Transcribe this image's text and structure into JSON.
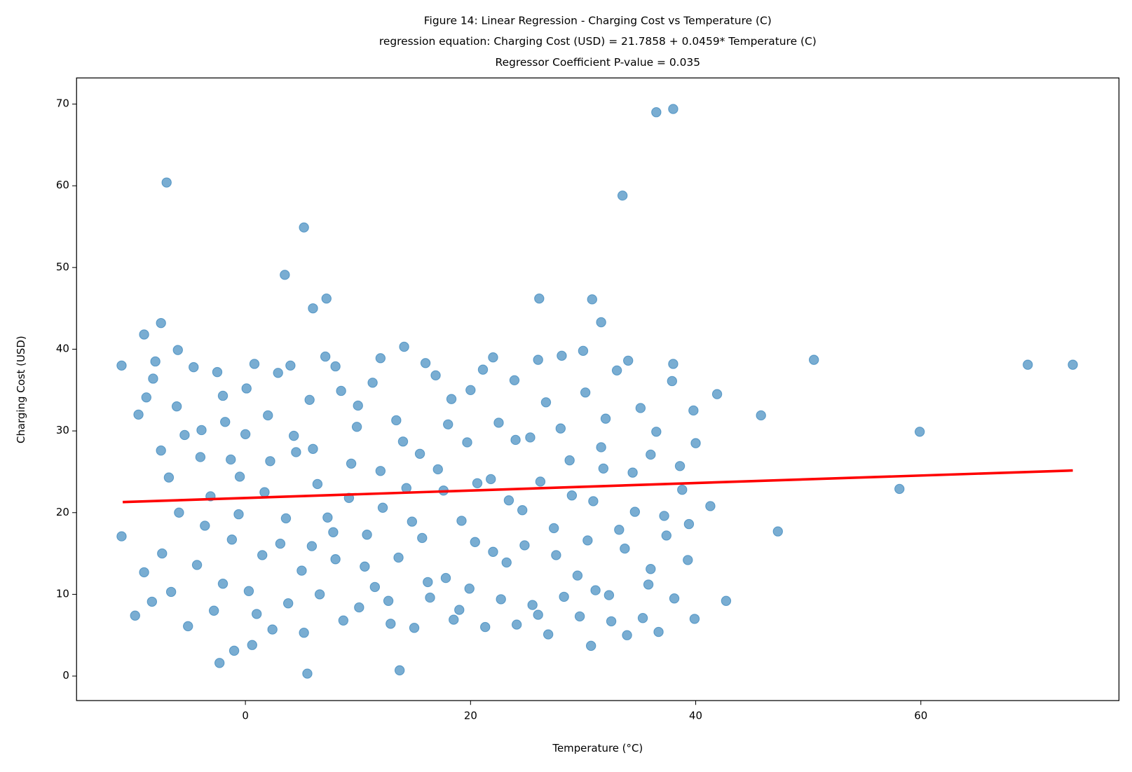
{
  "chart_data": {
    "type": "scatter",
    "title": [
      "Figure 14: Linear Regression - Charging Cost vs Temperature (C)",
      "regression equation: Charging Cost (USD) = 21.7858 + 0.0459* Temperature (C)",
      "Regressor Coefficient P-value = 0.035"
    ],
    "x_label": "Temperature (°C)",
    "y_label": "Charging Cost (USD)",
    "xlim": [
      -15.0,
      77.6
    ],
    "ylim": [
      -3.0,
      73.2
    ],
    "xticks": [
      0,
      20,
      40,
      60
    ],
    "yticks": [
      0,
      10,
      20,
      30,
      40,
      50,
      60,
      70
    ],
    "grid": false,
    "series": [
      {
        "kind": "points",
        "color": "#1f77b4",
        "opacity": 0.6,
        "x": [
          -7,
          5.2,
          3.5,
          7.2,
          6.0,
          -7.5,
          -9,
          26.1,
          30.8,
          31.6,
          33.5,
          36.5,
          38.0,
          50.5,
          45.8,
          47.3,
          58.1,
          59.9,
          69.5,
          73.5,
          42.7,
          41.9,
          41.3,
          5.5,
          13.7,
          -2.3,
          -1,
          0.6,
          30.7,
          -11,
          -11,
          -9.5,
          -8.8,
          -8.2,
          -7.5,
          -6.8,
          -6.1,
          -5.4,
          -4.6,
          -3.9,
          -3.1,
          -2.5,
          -1.8,
          -1.2,
          -0.5,
          0.1,
          0.8,
          1.5,
          2.2,
          2.9,
          3.6,
          4.3,
          5.0,
          5.7,
          6.4,
          7.1,
          7.8,
          8.5,
          9.2,
          9.9,
          10.6,
          11.3,
          12.0,
          12.7,
          13.4,
          14.1,
          14.8,
          15.5,
          16.2,
          16.9,
          17.6,
          18.3,
          19.0,
          19.7,
          20.4,
          21.1,
          21.8,
          22.5,
          23.2,
          23.9,
          24.6,
          25.3,
          26.0,
          26.7,
          27.4,
          28.1,
          28.8,
          29.5,
          30.2,
          30.9,
          31.6,
          32.3,
          33.0,
          33.7,
          34.4,
          35.1,
          35.8,
          36.5,
          37.2,
          37.9,
          38.6,
          39.3,
          39.8,
          -9.8,
          -9.0,
          -8.3,
          -7.4,
          -6.6,
          -5.9,
          -5.1,
          -4.3,
          -3.6,
          -2.8,
          -2.0,
          -1.3,
          -0.6,
          0.3,
          1.0,
          1.7,
          2.4,
          3.1,
          3.8,
          4.5,
          5.2,
          5.9,
          6.6,
          7.3,
          8.0,
          8.7,
          9.4,
          10.1,
          10.8,
          11.5,
          12.2,
          12.9,
          13.6,
          14.3,
          15.0,
          15.7,
          16.4,
          17.1,
          17.8,
          18.5,
          19.2,
          19.9,
          20.6,
          21.3,
          22.0,
          22.7,
          23.4,
          24.1,
          24.8,
          25.5,
          26.2,
          26.9,
          27.6,
          28.3,
          29.0,
          29.7,
          30.4,
          31.1,
          31.8,
          32.5,
          33.2,
          33.9,
          34.6,
          35.3,
          36.0,
          36.7,
          37.4,
          38.1,
          38.8,
          39.4,
          39.9,
          -8.0,
          -6.0,
          -4.0,
          -2.0,
          0.0,
          2.0,
          4.0,
          6.0,
          8.0,
          10.0,
          12.0,
          14.0,
          16.0,
          18.0,
          20.0,
          22.0,
          24.0,
          26.0,
          28.0,
          30.0,
          32.0,
          34.0,
          36.0,
          38.0,
          40.0
        ],
        "values": [
          60.4,
          54.9,
          49.1,
          46.2,
          45.0,
          43.2,
          41.8,
          46.2,
          46.1,
          43.3,
          58.8,
          69.0,
          69.4,
          38.7,
          31.9,
          17.7,
          22.9,
          29.9,
          38.1,
          38.1,
          9.2,
          34.5,
          20.8,
          0.3,
          0.7,
          1.6,
          3.1,
          3.8,
          3.7,
          38,
          17.1,
          32.0,
          34.1,
          36.4,
          27.6,
          24.3,
          33.0,
          29.5,
          37.8,
          30.1,
          22.0,
          37.2,
          31.1,
          16.7,
          24.4,
          35.2,
          38.2,
          14.8,
          26.3,
          37.1,
          19.3,
          29.4,
          12.9,
          33.8,
          23.5,
          39.1,
          17.6,
          34.9,
          21.8,
          30.5,
          13.4,
          35.9,
          25.1,
          9.2,
          31.3,
          40.3,
          18.9,
          27.2,
          11.5,
          36.8,
          22.7,
          33.9,
          8.1,
          28.6,
          16.4,
          37.5,
          24.1,
          31.0,
          13.9,
          36.2,
          20.3,
          29.2,
          7.5,
          33.5,
          18.1,
          39.2,
          26.4,
          12.3,
          34.7,
          21.4,
          28.0,
          9.9,
          37.4,
          15.6,
          24.9,
          32.8,
          11.2,
          29.9,
          19.6,
          36.1,
          25.7,
          14.2,
          32.5,
          7.4,
          12.7,
          9.1,
          15.0,
          10.3,
          20.0,
          6.1,
          13.6,
          18.4,
          8.0,
          11.3,
          26.5,
          19.8,
          10.4,
          7.6,
          22.5,
          5.7,
          16.2,
          8.9,
          27.4,
          5.3,
          15.9,
          10.0,
          19.4,
          14.3,
          6.8,
          26.0,
          8.4,
          17.3,
          10.9,
          20.6,
          6.4,
          14.5,
          23.0,
          5.9,
          16.9,
          9.6,
          25.3,
          12.0,
          6.9,
          19.0,
          10.7,
          23.6,
          6.0,
          15.2,
          9.4,
          21.5,
          6.3,
          16.0,
          8.7,
          23.8,
          5.1,
          14.8,
          9.7,
          22.1,
          7.3,
          16.6,
          10.5,
          25.4,
          6.7,
          17.9,
          5.0,
          20.1,
          7.1,
          13.1,
          5.4,
          17.2,
          9.5,
          22.8,
          18.6,
          7.0,
          38.5,
          39.9,
          26.8,
          34.3,
          29.6,
          31.9,
          38.0,
          27.8,
          37.9,
          33.1,
          38.9,
          28.7,
          38.3,
          30.8,
          35.0,
          39.0,
          28.9,
          38.7,
          30.3,
          39.8,
          31.5,
          38.6,
          27.1,
          38.2,
          28.5
        ]
      },
      {
        "kind": "line",
        "color": "#ff0000",
        "x": [
          -10.9,
          73.5
        ],
        "values": [
          21.29,
          25.16
        ]
      }
    ]
  }
}
